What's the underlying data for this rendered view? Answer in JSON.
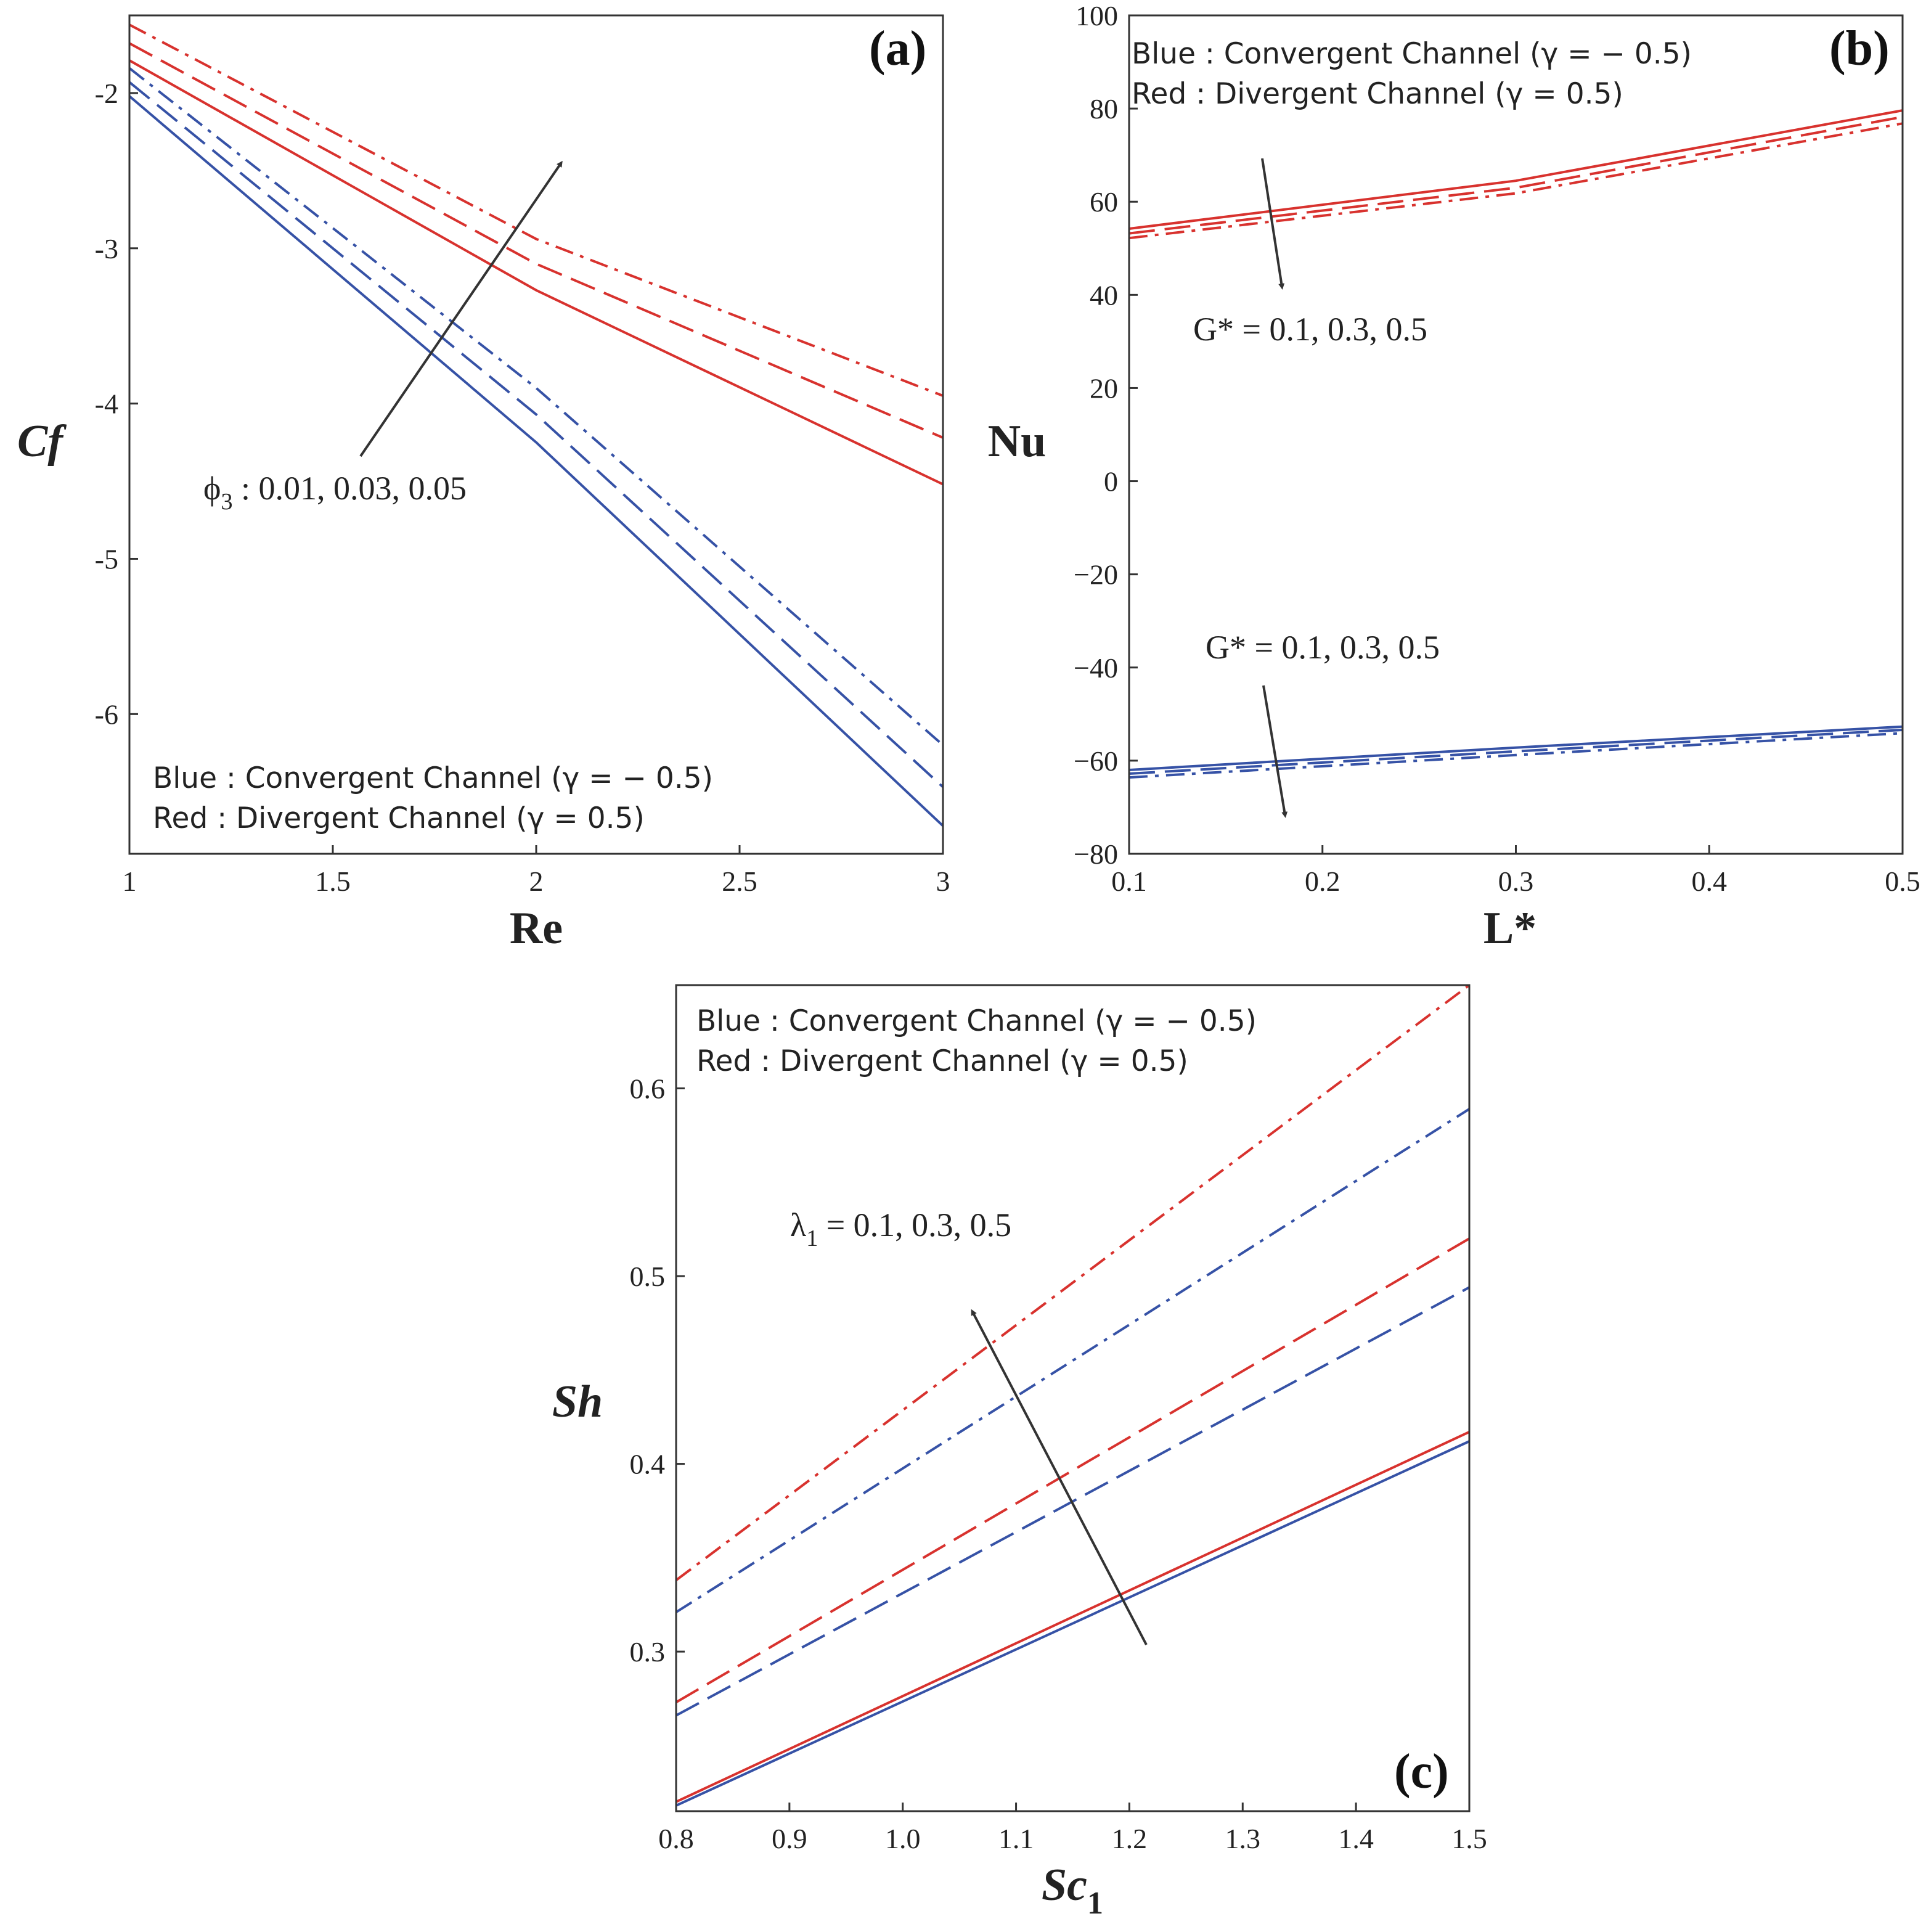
{
  "colors": {
    "blue": "#3652a6",
    "red": "#d8322e",
    "arrow": "#333333",
    "axis": "#333333"
  },
  "chart_data": [
    {
      "id": "a",
      "type": "line",
      "panel_label": "(a)",
      "xlabel": "Re",
      "ylabel": "Cf",
      "xlim": [
        1,
        3
      ],
      "ylim": [
        -6.9,
        -1.5
      ],
      "xticks": [
        1,
        1.5,
        2,
        2.5,
        3
      ],
      "xtick_labels": [
        "1",
        "1.5",
        "2",
        "2.5",
        "3"
      ],
      "yticks": [
        -2,
        -3,
        -4,
        -5,
        -6
      ],
      "ytick_labels": [
        "-2",
        "-3",
        "-4",
        "-5",
        "-6"
      ],
      "legend": [
        "Blue : Convergent Channel (γ = − 0.5)",
        "Red : Divergent Channel (γ = 0.5)"
      ],
      "annotation": {
        "symbol": "ϕ",
        "sub": "3",
        "text": " : 0.01, 0.03, 0.05"
      },
      "series": [
        {
          "color": "blue",
          "dash": "solid",
          "x": [
            1,
            2,
            3
          ],
          "y": [
            -2.02,
            -4.25,
            -6.72
          ]
        },
        {
          "color": "blue",
          "dash": "dash",
          "x": [
            1,
            2,
            3
          ],
          "y": [
            -1.93,
            -4.07,
            -6.47
          ]
        },
        {
          "color": "blue",
          "dash": "dashdot",
          "x": [
            1,
            2,
            3
          ],
          "y": [
            -1.84,
            -3.9,
            -6.2
          ]
        },
        {
          "color": "red",
          "dash": "solid",
          "x": [
            1,
            2,
            3
          ],
          "y": [
            -1.79,
            -3.27,
            -4.52
          ]
        },
        {
          "color": "red",
          "dash": "dash",
          "x": [
            1,
            2,
            3
          ],
          "y": [
            -1.68,
            -3.1,
            -4.22
          ]
        },
        {
          "color": "red",
          "dash": "dashdot",
          "x": [
            1,
            2,
            3
          ],
          "y": [
            -1.56,
            -2.94,
            -3.95
          ]
        }
      ]
    },
    {
      "id": "b",
      "type": "line",
      "panel_label": "(b)",
      "xlabel": "L*",
      "ylabel": "Nu",
      "xlim": [
        0.1,
        0.5
      ],
      "ylim": [
        -80,
        100
      ],
      "xticks": [
        0.1,
        0.2,
        0.3,
        0.4,
        0.5
      ],
      "xtick_labels": [
        "0.1",
        "0.2",
        "0.3",
        "0.4",
        "0.5"
      ],
      "yticks": [
        100,
        80,
        60,
        40,
        20,
        0,
        -20,
        -40,
        -60,
        -80
      ],
      "ytick_labels": [
        "100",
        "80",
        "60",
        "40",
        "20",
        "0",
        "−20",
        "−40",
        "−60",
        "−80"
      ],
      "legend": [
        "Blue : Convergent Channel (γ = − 0.5)",
        "Red : Divergent Channel (γ = 0.5)"
      ],
      "annotations": [
        "G* = 0.1, 0.3, 0.5",
        "G* = 0.1, 0.3, 0.5"
      ],
      "series": [
        {
          "color": "red",
          "dash": "solid",
          "x": [
            0.1,
            0.3,
            0.5
          ],
          "y": [
            54.2,
            64.5,
            79.6
          ]
        },
        {
          "color": "red",
          "dash": "dash",
          "x": [
            0.1,
            0.3,
            0.5
          ],
          "y": [
            53.2,
            63.0,
            78.2
          ]
        },
        {
          "color": "red",
          "dash": "dashdot",
          "x": [
            0.1,
            0.3,
            0.5
          ],
          "y": [
            52.2,
            61.8,
            76.8
          ]
        },
        {
          "color": "blue",
          "dash": "solid",
          "x": [
            0.1,
            0.3,
            0.5
          ],
          "y": [
            -62.0,
            -57.2,
            -52.7
          ]
        },
        {
          "color": "blue",
          "dash": "dash",
          "x": [
            0.1,
            0.3,
            0.5
          ],
          "y": [
            -62.8,
            -58.0,
            -53.4
          ]
        },
        {
          "color": "blue",
          "dash": "dashdot",
          "x": [
            0.1,
            0.3,
            0.5
          ],
          "y": [
            -63.6,
            -58.8,
            -54.1
          ]
        }
      ]
    },
    {
      "id": "c",
      "type": "line",
      "panel_label": "(c)",
      "xlabel": "Sc",
      "xlabel_sub": "1",
      "ylabel": "Sh",
      "xlim": [
        0.8,
        1.5
      ],
      "ylim": [
        0.215,
        0.655
      ],
      "xticks": [
        0.8,
        0.9,
        1.0,
        1.1,
        1.2,
        1.3,
        1.4,
        1.5
      ],
      "xtick_labels": [
        "0.8",
        "0.9",
        "1.0",
        "1.1",
        "1.2",
        "1.3",
        "1.4",
        "1.5"
      ],
      "yticks": [
        0.3,
        0.4,
        0.5,
        0.6
      ],
      "ytick_labels": [
        "0.3",
        "0.4",
        "0.5",
        "0.6"
      ],
      "legend": [
        "Blue : Convergent Channel (γ = − 0.5)",
        "Red : Divergent Channel (γ = 0.5)"
      ],
      "annotation": {
        "symbol": "λ",
        "sub": "1",
        "text": " = 0.1, 0.3, 0.5"
      },
      "series": [
        {
          "color": "blue",
          "dash": "solid",
          "x": [
            0.8,
            1.5
          ],
          "y": [
            0.218,
            0.412
          ]
        },
        {
          "color": "red",
          "dash": "solid",
          "x": [
            0.8,
            1.5
          ],
          "y": [
            0.22,
            0.417
          ]
        },
        {
          "color": "blue",
          "dash": "dash",
          "x": [
            0.8,
            1.5
          ],
          "y": [
            0.266,
            0.494
          ]
        },
        {
          "color": "red",
          "dash": "dash",
          "x": [
            0.8,
            1.5
          ],
          "y": [
            0.273,
            0.52
          ]
        },
        {
          "color": "blue",
          "dash": "dashdot",
          "x": [
            0.8,
            1.5
          ],
          "y": [
            0.321,
            0.589
          ]
        },
        {
          "color": "red",
          "dash": "dashdot",
          "x": [
            0.8,
            1.5
          ],
          "y": [
            0.338,
            0.655
          ]
        }
      ]
    }
  ]
}
